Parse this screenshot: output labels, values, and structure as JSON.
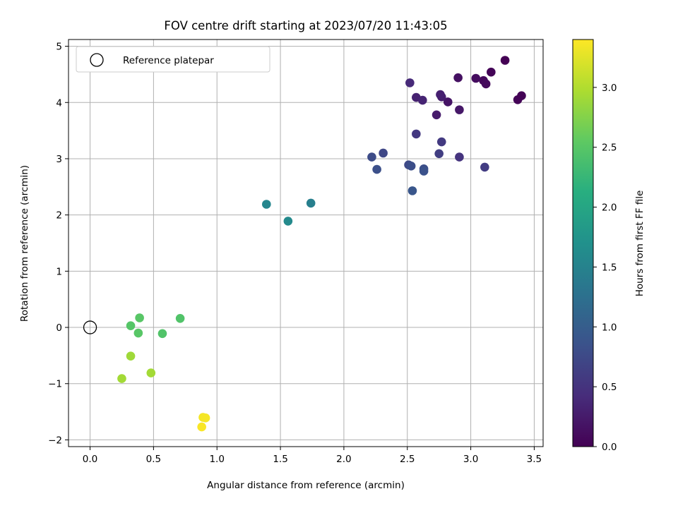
{
  "chart_data": {
    "type": "scatter",
    "title": "FOV centre drift starting at 2023/07/20 11:43:05",
    "xlabel": "Angular distance from reference (arcmin)",
    "ylabel": "Rotation from reference (arcmin)",
    "xlim": [
      -0.17,
      3.57
    ],
    "ylim": [
      -2.12,
      5.12
    ],
    "xticks": [
      0.0,
      0.5,
      1.0,
      1.5,
      2.0,
      2.5,
      3.0,
      3.5
    ],
    "xtick_labels": [
      "0.0",
      "0.5",
      "1.0",
      "1.5",
      "2.0",
      "2.5",
      "3.0",
      "3.5"
    ],
    "yticks": [
      -2,
      -1,
      0,
      1,
      2,
      3,
      4,
      5
    ],
    "ytick_labels": [
      "−2",
      "−1",
      "0",
      "1",
      "2",
      "3",
      "4",
      "5"
    ],
    "grid": true,
    "legend": {
      "position": "top-left",
      "label": "Reference platepar"
    },
    "reference_point": {
      "x": 0.0,
      "y": 0.0
    },
    "colorbar": {
      "label": "Hours from first FF file",
      "range": [
        0.0,
        3.4
      ],
      "ticks": [
        0.0,
        0.5,
        1.0,
        1.5,
        2.0,
        2.5,
        3.0
      ],
      "tick_labels": [
        "0.0",
        "0.5",
        "1.0",
        "1.5",
        "2.0",
        "2.5",
        "3.0"
      ],
      "colormap": "viridis"
    },
    "points": [
      {
        "x": 3.27,
        "y": 4.75,
        "h": 0.0
      },
      {
        "x": 3.16,
        "y": 4.54,
        "h": 0.03
      },
      {
        "x": 3.1,
        "y": 4.39,
        "h": 0.06
      },
      {
        "x": 3.12,
        "y": 4.33,
        "h": 0.09
      },
      {
        "x": 3.04,
        "y": 4.43,
        "h": 0.12
      },
      {
        "x": 3.37,
        "y": 4.05,
        "h": 0.03
      },
      {
        "x": 3.4,
        "y": 4.12,
        "h": 0.02
      },
      {
        "x": 2.9,
        "y": 4.44,
        "h": 0.15
      },
      {
        "x": 2.82,
        "y": 4.01,
        "h": 0.18
      },
      {
        "x": 2.91,
        "y": 3.87,
        "h": 0.22
      },
      {
        "x": 2.73,
        "y": 3.78,
        "h": 0.25
      },
      {
        "x": 2.77,
        "y": 4.1,
        "h": 0.28
      },
      {
        "x": 2.76,
        "y": 4.14,
        "h": 0.3
      },
      {
        "x": 2.57,
        "y": 4.09,
        "h": 0.32
      },
      {
        "x": 2.62,
        "y": 4.04,
        "h": 0.34
      },
      {
        "x": 2.52,
        "y": 4.35,
        "h": 0.4
      },
      {
        "x": 2.57,
        "y": 3.44,
        "h": 0.55
      },
      {
        "x": 2.77,
        "y": 3.3,
        "h": 0.58
      },
      {
        "x": 2.75,
        "y": 3.09,
        "h": 0.62
      },
      {
        "x": 2.91,
        "y": 3.03,
        "h": 0.5
      },
      {
        "x": 3.11,
        "y": 2.85,
        "h": 0.6
      },
      {
        "x": 2.31,
        "y": 3.1,
        "h": 0.72
      },
      {
        "x": 2.22,
        "y": 3.03,
        "h": 0.78
      },
      {
        "x": 2.51,
        "y": 2.89,
        "h": 0.75
      },
      {
        "x": 2.53,
        "y": 2.87,
        "h": 0.8
      },
      {
        "x": 2.26,
        "y": 2.81,
        "h": 0.83
      },
      {
        "x": 2.63,
        "y": 2.82,
        "h": 0.8
      },
      {
        "x": 2.63,
        "y": 2.78,
        "h": 0.85
      },
      {
        "x": 2.54,
        "y": 2.43,
        "h": 0.9
      },
      {
        "x": 1.74,
        "y": 2.21,
        "h": 1.45
      },
      {
        "x": 1.39,
        "y": 2.19,
        "h": 1.55
      },
      {
        "x": 1.56,
        "y": 1.89,
        "h": 1.6
      },
      {
        "x": 0.71,
        "y": 0.16,
        "h": 2.45
      },
      {
        "x": 0.39,
        "y": 0.17,
        "h": 2.5
      },
      {
        "x": 0.32,
        "y": 0.03,
        "h": 2.48
      },
      {
        "x": 0.38,
        "y": -0.1,
        "h": 2.5
      },
      {
        "x": 0.57,
        "y": -0.11,
        "h": 2.45
      },
      {
        "x": 0.32,
        "y": -0.51,
        "h": 2.9
      },
      {
        "x": 0.48,
        "y": -0.81,
        "h": 2.92
      },
      {
        "x": 0.25,
        "y": -0.91,
        "h": 2.92
      },
      {
        "x": 0.89,
        "y": -1.6,
        "h": 3.35
      },
      {
        "x": 0.91,
        "y": -1.61,
        "h": 3.36
      },
      {
        "x": 0.88,
        "y": -1.77,
        "h": 3.38
      }
    ]
  }
}
